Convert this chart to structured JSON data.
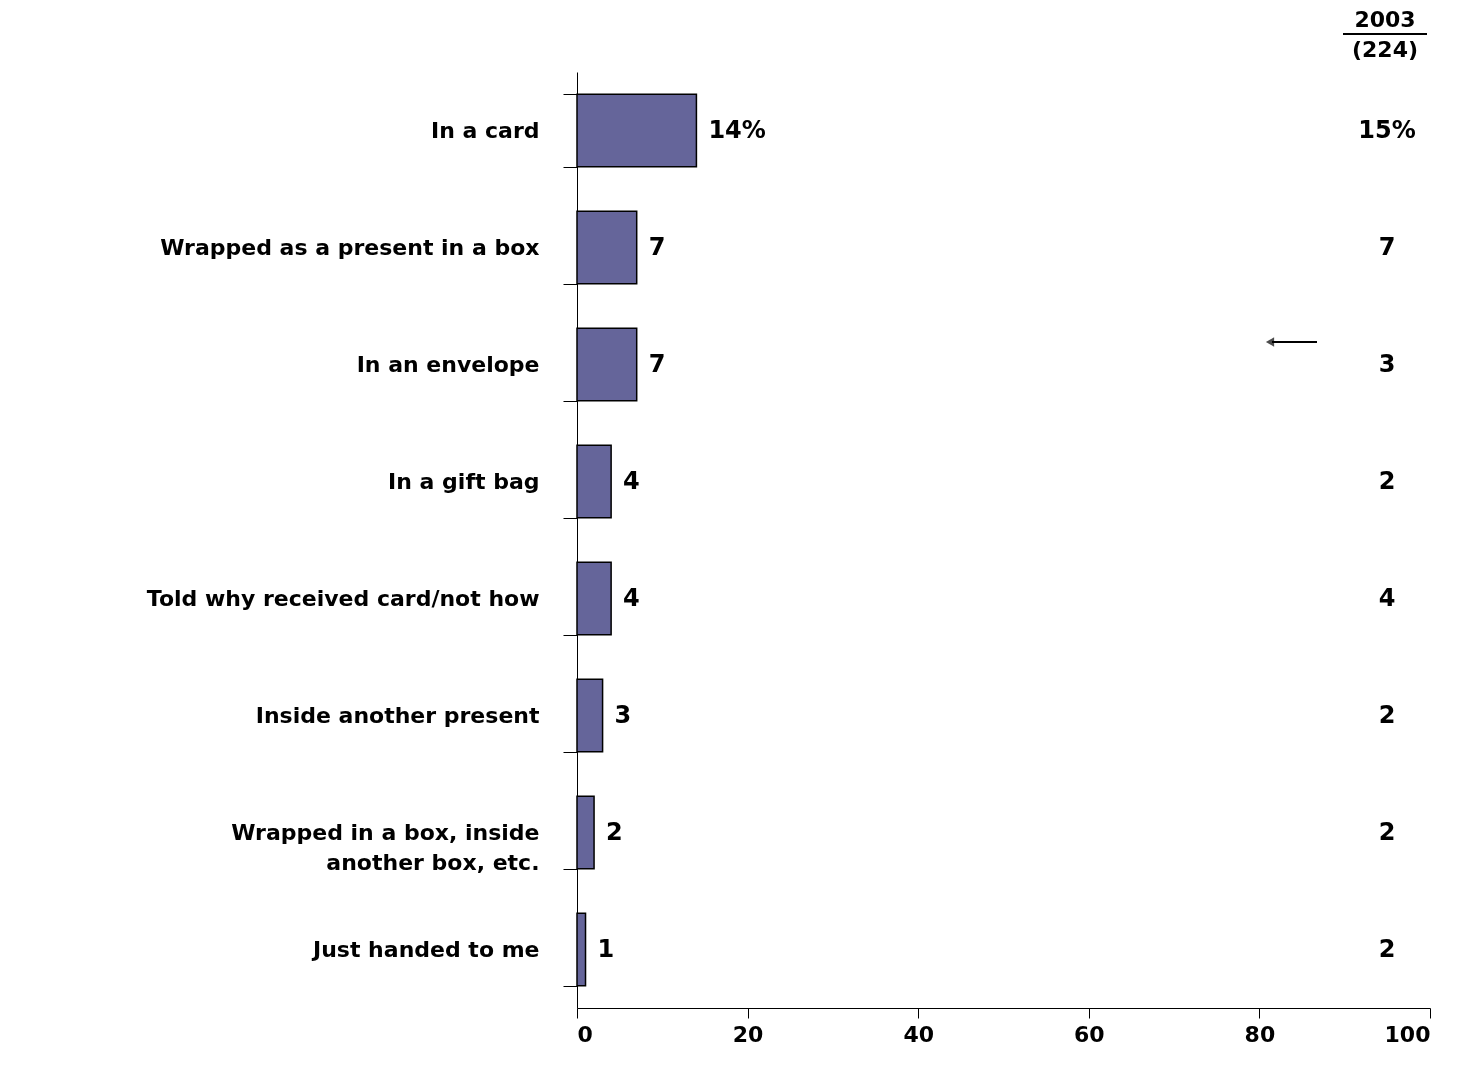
{
  "chart_data": {
    "type": "bar",
    "orientation": "horizontal",
    "categories": [
      "In a card",
      "Wrapped as a present in a box",
      "In an envelope",
      "In a gift bag",
      "Told why received card/not how",
      "Inside another present",
      "Wrapped in a box, inside another box, etc.",
      "Just handed to me"
    ],
    "values": [
      14,
      7,
      7,
      4,
      4,
      3,
      2,
      1
    ],
    "value_labels": [
      "14%",
      "7",
      "7",
      "4",
      "4",
      "3",
      "2",
      "1"
    ],
    "color": "#65659a",
    "xlim": [
      0,
      100
    ],
    "xticks": [
      0,
      20,
      40,
      60,
      80,
      100
    ],
    "grid": false,
    "annotations": [
      "2003",
      "(224)",
      "15%",
      "7",
      "3",
      "2",
      "4",
      "2",
      "2",
      "2"
    ]
  }
}
